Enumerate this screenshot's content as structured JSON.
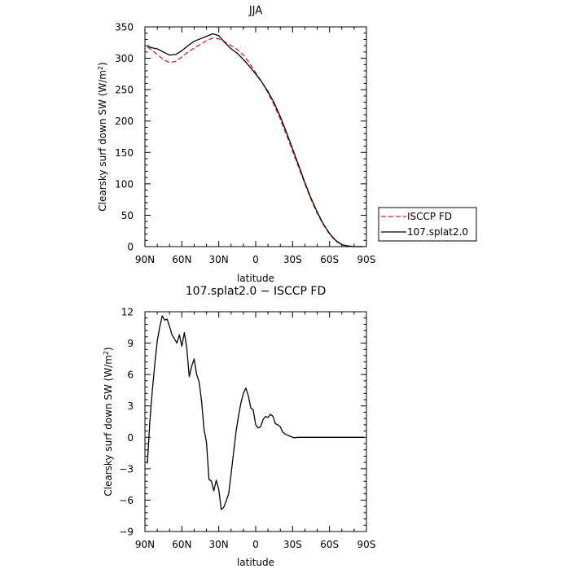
{
  "chart_data": [
    {
      "type": "line",
      "title": "JJA",
      "xlabel": "latitude",
      "ylabel_prefix": "Clearsky surf down SW (W/m",
      "ylabel_sup": "2",
      "ylabel_suffix": ")",
      "x_tick_labels": [
        "90N",
        "60N",
        "30N",
        "0",
        "30S",
        "60S",
        "90S"
      ],
      "x_ticks": [
        90,
        60,
        30,
        0,
        -30,
        -60,
        -90
      ],
      "xlim": [
        90,
        -90
      ],
      "ylim": [
        0,
        350
      ],
      "y_ticks": [
        0,
        50,
        100,
        150,
        200,
        250,
        300,
        350
      ],
      "legend_placement": "right",
      "series": [
        {
          "name": "ISCCP FD",
          "color": "#e02020",
          "dash": "dashed",
          "x": [
            88,
            85,
            80,
            75,
            70,
            65,
            60,
            55,
            50,
            45,
            40,
            35,
            30,
            25,
            20,
            15,
            10,
            5,
            0,
            -5,
            -10,
            -15,
            -20,
            -25,
            -30,
            -35,
            -40,
            -45,
            -50,
            -55,
            -60,
            -65,
            -70,
            -75,
            -80,
            -85,
            -88
          ],
          "values": [
            318,
            314,
            306,
            298,
            293,
            295,
            302,
            310,
            316,
            322,
            328,
            332,
            331,
            326,
            320,
            314,
            305,
            292,
            277,
            262,
            245,
            225,
            203,
            178,
            152,
            126,
            100,
            75,
            53,
            35,
            20,
            9,
            3,
            1,
            0,
            0,
            0
          ]
        },
        {
          "name": "107.splat2.0",
          "color": "#000000",
          "dash": "solid",
          "x": [
            88,
            85,
            80,
            75,
            70,
            65,
            60,
            55,
            50,
            45,
            40,
            35,
            30,
            25,
            20,
            15,
            10,
            5,
            0,
            -5,
            -10,
            -15,
            -20,
            -25,
            -30,
            -35,
            -40,
            -45,
            -50,
            -55,
            -60,
            -65,
            -70,
            -75,
            -80,
            -85,
            -88
          ],
          "values": [
            320,
            317,
            315,
            310,
            305,
            306,
            312,
            320,
            327,
            331,
            335,
            339,
            336,
            325,
            315,
            308,
            298,
            287,
            275,
            262,
            247,
            229,
            207,
            182,
            156,
            129,
            102,
            77,
            55,
            36,
            21,
            10,
            3,
            1,
            0,
            0,
            0
          ]
        }
      ]
    },
    {
      "type": "line",
      "title": "107.splat2.0 − ISCCP FD",
      "xlabel": "latitude",
      "ylabel_prefix": "Clearsky surf down SW (W/m",
      "ylabel_sup": "2",
      "ylabel_suffix": ")",
      "x_tick_labels": [
        "90N",
        "60N",
        "30N",
        "0",
        "30S",
        "60S",
        "90S"
      ],
      "x_ticks": [
        90,
        60,
        30,
        0,
        -30,
        -60,
        -90
      ],
      "xlim": [
        90,
        -90
      ],
      "ylim": [
        -9,
        12
      ],
      "y_ticks": [
        -9,
        -6,
        -3,
        0,
        3,
        6,
        9,
        12
      ],
      "series": [
        {
          "name": "",
          "color": "#000000",
          "x": [
            88,
            86,
            84,
            82,
            80,
            78,
            76,
            74,
            72,
            70,
            68,
            66,
            64,
            62,
            60,
            58,
            56,
            54,
            52,
            50,
            48,
            46,
            44,
            42,
            40,
            38,
            36,
            34,
            32,
            30,
            28,
            26,
            24,
            22,
            20,
            18,
            16,
            14,
            12,
            10,
            8,
            6,
            4,
            2,
            0,
            -2,
            -4,
            -6,
            -8,
            -10,
            -12,
            -14,
            -16,
            -18,
            -20,
            -22,
            -24,
            -26,
            -28,
            -30,
            -32,
            -34,
            -36,
            -38,
            -40,
            -42,
            -44,
            -46,
            -48,
            -50,
            -52,
            -54,
            -56,
            -58,
            -60,
            -62,
            -64,
            -66,
            -68,
            -70,
            -72,
            -74,
            -76,
            -78,
            -80,
            -82,
            -84,
            -86,
            -88
          ],
          "values": [
            -2.5,
            1.5,
            4.5,
            7.0,
            9.2,
            10.5,
            11.6,
            11.2,
            11.3,
            10.6,
            9.8,
            9.4,
            9.0,
            9.8,
            8.7,
            10.0,
            8.5,
            5.8,
            6.8,
            7.5,
            6.0,
            5.3,
            3.5,
            0.8,
            -0.5,
            -4.0,
            -4.2,
            -5.1,
            -4.1,
            -5.0,
            -6.9,
            -6.7,
            -6.1,
            -5.4,
            -3.5,
            -1.5,
            0.5,
            2.0,
            3.3,
            4.2,
            4.7,
            4.0,
            2.8,
            2.6,
            1.2,
            0.9,
            1.0,
            1.7,
            2.0,
            1.9,
            2.2,
            2.0,
            1.3,
            1.2,
            1.0,
            0.5,
            0.3,
            0.2,
            0.1,
            0.0,
            -0.05,
            0.0,
            0.0,
            0.0,
            0.0,
            0.0,
            0.0,
            0.0,
            0.0,
            0.0,
            0.0,
            0.0,
            0.0,
            0.0,
            0.0,
            0.0,
            0.0,
            0.0,
            0.0,
            0.0,
            0.0,
            0.0,
            0.0,
            0.0,
            0.0,
            0.0,
            0.0,
            0.0,
            0.0
          ]
        }
      ]
    }
  ]
}
